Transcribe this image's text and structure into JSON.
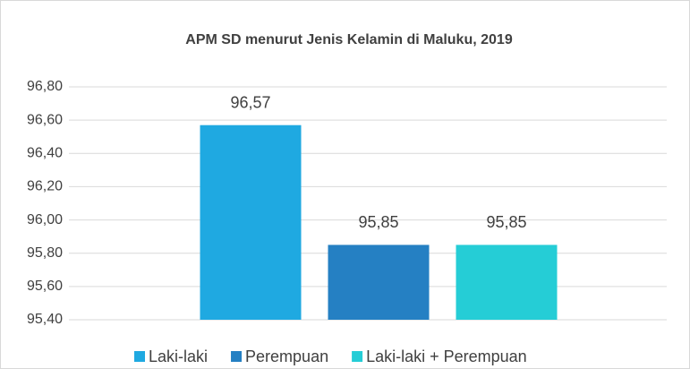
{
  "chart_data": {
    "type": "bar",
    "title": "APM SD menurut Jenis Kelamin di Maluku, 2019",
    "categories": [
      null
    ],
    "series": [
      {
        "name": "Laki-laki",
        "color": "#1fa9e1",
        "values": [
          96.57
        ],
        "value_labels": [
          "96,57"
        ]
      },
      {
        "name": "Perempuan",
        "color": "#2580c3",
        "values": [
          95.85
        ],
        "value_labels": [
          "95,85"
        ]
      },
      {
        "name": "Laki-laki + Perempuan",
        "color": "#25cdd6",
        "values": [
          95.85
        ],
        "value_labels": [
          "95,85"
        ]
      }
    ],
    "ylim": [
      95.4,
      96.8
    ],
    "yticks": [
      {
        "value": 95.4,
        "label": "95,40"
      },
      {
        "value": 95.6,
        "label": "95,60"
      },
      {
        "value": 95.8,
        "label": "95,80"
      },
      {
        "value": 96.0,
        "label": "96,00"
      },
      {
        "value": 96.2,
        "label": "96,20"
      },
      {
        "value": 96.4,
        "label": "96,40"
      },
      {
        "value": 96.6,
        "label": "96,60"
      },
      {
        "value": 96.8,
        "label": "96,80"
      }
    ],
    "grid": true,
    "legend": "bottom"
  }
}
